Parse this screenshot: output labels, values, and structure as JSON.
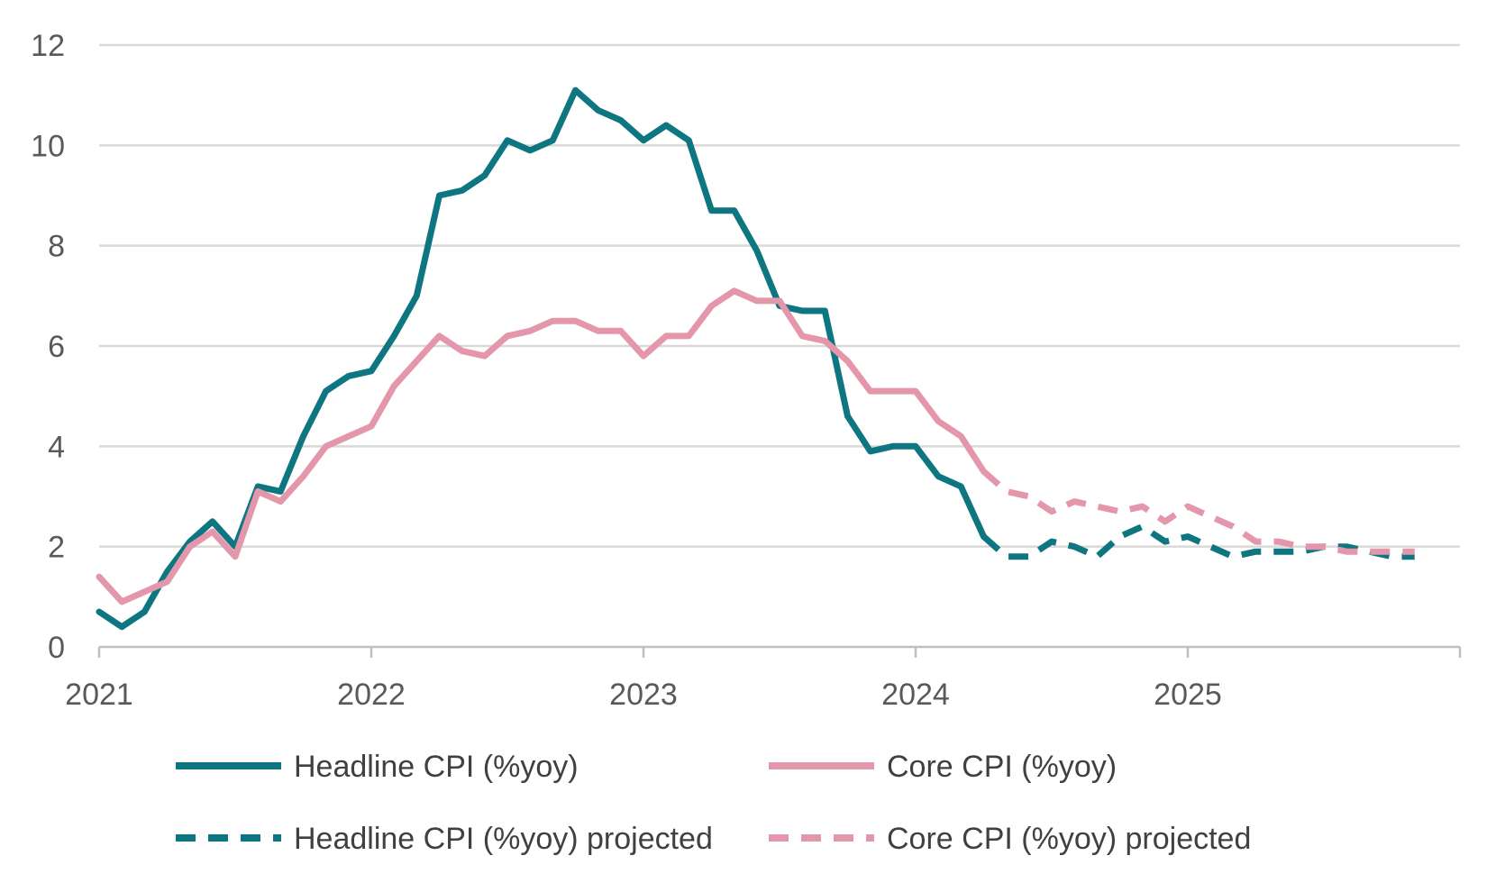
{
  "chart_data": {
    "type": "line",
    "title": "",
    "xlabel": "",
    "ylabel": "",
    "ylim": [
      0,
      12
    ],
    "yticks": [
      0,
      2,
      4,
      6,
      8,
      10,
      12
    ],
    "xlim": [
      2021.0,
      2025.9167
    ],
    "xticks": [
      2021,
      2022,
      2023,
      2024,
      2025
    ],
    "grid": "horizontal",
    "legend_position": "bottom",
    "colors": {
      "headline": "#0e7680",
      "core": "#e497ab"
    },
    "series": [
      {
        "name": "Headline CPI (%yoy)",
        "style": "solid",
        "color": "#0e7680",
        "points": [
          [
            2021.0,
            0.7
          ],
          [
            2021.0833,
            0.4
          ],
          [
            2021.1667,
            0.7
          ],
          [
            2021.25,
            1.5
          ],
          [
            2021.3333,
            2.1
          ],
          [
            2021.4167,
            2.5
          ],
          [
            2021.5,
            2.0
          ],
          [
            2021.5833,
            3.2
          ],
          [
            2021.6667,
            3.1
          ],
          [
            2021.75,
            4.2
          ],
          [
            2021.8333,
            5.1
          ],
          [
            2021.9167,
            5.4
          ],
          [
            2022.0,
            5.5
          ],
          [
            2022.0833,
            6.2
          ],
          [
            2022.1667,
            7.0
          ],
          [
            2022.25,
            9.0
          ],
          [
            2022.3333,
            9.1
          ],
          [
            2022.4167,
            9.4
          ],
          [
            2022.5,
            10.1
          ],
          [
            2022.5833,
            9.9
          ],
          [
            2022.6667,
            10.1
          ],
          [
            2022.75,
            11.1
          ],
          [
            2022.8333,
            10.7
          ],
          [
            2022.9167,
            10.5
          ],
          [
            2023.0,
            10.1
          ],
          [
            2023.0833,
            10.4
          ],
          [
            2023.1667,
            10.1
          ],
          [
            2023.25,
            8.7
          ],
          [
            2023.3333,
            8.7
          ],
          [
            2023.4167,
            7.9
          ],
          [
            2023.5,
            6.8
          ],
          [
            2023.5833,
            6.7
          ],
          [
            2023.6667,
            6.7
          ],
          [
            2023.75,
            4.6
          ],
          [
            2023.8333,
            3.9
          ],
          [
            2023.9167,
            4.0
          ],
          [
            2024.0,
            4.0
          ],
          [
            2024.0833,
            3.4
          ],
          [
            2024.1667,
            3.2
          ],
          [
            2024.25,
            2.2
          ]
        ]
      },
      {
        "name": "Core CPI (%yoy)",
        "style": "solid",
        "color": "#e497ab",
        "points": [
          [
            2021.0,
            1.4
          ],
          [
            2021.0833,
            0.9
          ],
          [
            2021.1667,
            1.1
          ],
          [
            2021.25,
            1.3
          ],
          [
            2021.3333,
            2.0
          ],
          [
            2021.4167,
            2.3
          ],
          [
            2021.5,
            1.8
          ],
          [
            2021.5833,
            3.1
          ],
          [
            2021.6667,
            2.9
          ],
          [
            2021.75,
            3.4
          ],
          [
            2021.8333,
            4.0
          ],
          [
            2021.9167,
            4.2
          ],
          [
            2022.0,
            4.4
          ],
          [
            2022.0833,
            5.2
          ],
          [
            2022.1667,
            5.7
          ],
          [
            2022.25,
            6.2
          ],
          [
            2022.3333,
            5.9
          ],
          [
            2022.4167,
            5.8
          ],
          [
            2022.5,
            6.2
          ],
          [
            2022.5833,
            6.3
          ],
          [
            2022.6667,
            6.5
          ],
          [
            2022.75,
            6.5
          ],
          [
            2022.8333,
            6.3
          ],
          [
            2022.9167,
            6.3
          ],
          [
            2023.0,
            5.8
          ],
          [
            2023.0833,
            6.2
          ],
          [
            2023.1667,
            6.2
          ],
          [
            2023.25,
            6.8
          ],
          [
            2023.3333,
            7.1
          ],
          [
            2023.4167,
            6.9
          ],
          [
            2023.5,
            6.9
          ],
          [
            2023.5833,
            6.2
          ],
          [
            2023.6667,
            6.1
          ],
          [
            2023.75,
            5.7
          ],
          [
            2023.8333,
            5.1
          ],
          [
            2023.9167,
            5.1
          ],
          [
            2024.0,
            5.1
          ],
          [
            2024.0833,
            4.5
          ],
          [
            2024.1667,
            4.2
          ],
          [
            2024.25,
            3.5
          ]
        ]
      },
      {
        "name": "Headline CPI (%yoy) projected",
        "style": "dashed",
        "color": "#0e7680",
        "points": [
          [
            2024.25,
            2.2
          ],
          [
            2024.3333,
            1.8
          ],
          [
            2024.4167,
            1.8
          ],
          [
            2024.5,
            2.1
          ],
          [
            2024.5833,
            2.0
          ],
          [
            2024.6667,
            1.8
          ],
          [
            2024.75,
            2.2
          ],
          [
            2024.8333,
            2.4
          ],
          [
            2024.9167,
            2.1
          ],
          [
            2025.0,
            2.2
          ],
          [
            2025.0833,
            2.0
          ],
          [
            2025.1667,
            1.8
          ],
          [
            2025.25,
            1.9
          ],
          [
            2025.3333,
            1.9
          ],
          [
            2025.4167,
            1.9
          ],
          [
            2025.5,
            2.0
          ],
          [
            2025.5833,
            2.0
          ],
          [
            2025.6667,
            1.9
          ],
          [
            2025.75,
            1.8
          ],
          [
            2025.8333,
            1.8
          ]
        ]
      },
      {
        "name": "Core CPI (%yoy) projected",
        "style": "dashed",
        "color": "#e497ab",
        "points": [
          [
            2024.25,
            3.5
          ],
          [
            2024.3333,
            3.1
          ],
          [
            2024.4167,
            3.0
          ],
          [
            2024.5,
            2.7
          ],
          [
            2024.5833,
            2.9
          ],
          [
            2024.6667,
            2.8
          ],
          [
            2024.75,
            2.7
          ],
          [
            2024.8333,
            2.8
          ],
          [
            2024.9167,
            2.5
          ],
          [
            2025.0,
            2.8
          ],
          [
            2025.0833,
            2.6
          ],
          [
            2025.1667,
            2.4
          ],
          [
            2025.25,
            2.1
          ],
          [
            2025.3333,
            2.1
          ],
          [
            2025.4167,
            2.0
          ],
          [
            2025.5,
            2.0
          ],
          [
            2025.5833,
            1.9
          ],
          [
            2025.6667,
            1.9
          ],
          [
            2025.75,
            1.9
          ],
          [
            2025.8333,
            1.9
          ]
        ]
      }
    ]
  }
}
